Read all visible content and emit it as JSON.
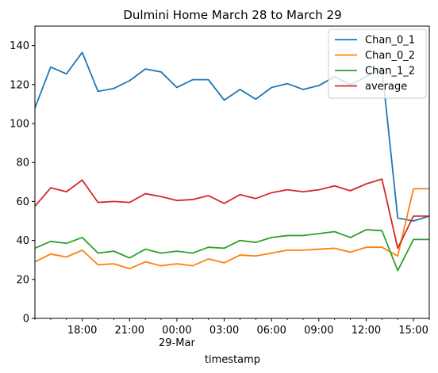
{
  "chart_data": {
    "type": "line",
    "title": "Dulmini Home March 28 to March 29",
    "xlabel": "timestamp",
    "ylabel": "",
    "x": [
      "03-28 15:00",
      "03-28 16:00",
      "03-28 17:00",
      "03-28 18:00",
      "03-28 19:00",
      "03-28 20:00",
      "03-28 21:00",
      "03-28 22:00",
      "03-28 23:00",
      "03-29 00:00",
      "03-29 01:00",
      "03-29 02:00",
      "03-29 03:00",
      "03-29 04:00",
      "03-29 05:00",
      "03-29 06:00",
      "03-29 07:00",
      "03-29 08:00",
      "03-29 09:00",
      "03-29 10:00",
      "03-29 11:00",
      "03-29 12:00",
      "03-29 13:00",
      "03-29 14:00",
      "03-29 15:00",
      "03-29 16:00"
    ],
    "x_ticks": [
      {
        "hour": 18,
        "label": "18:00",
        "sublabel": ""
      },
      {
        "hour": 21,
        "label": "21:00",
        "sublabel": ""
      },
      {
        "hour": 24,
        "label": "00:00",
        "sublabel": "29-Mar"
      },
      {
        "hour": 27,
        "label": "03:00",
        "sublabel": ""
      },
      {
        "hour": 30,
        "label": "06:00",
        "sublabel": ""
      },
      {
        "hour": 33,
        "label": "09:00",
        "sublabel": ""
      },
      {
        "hour": 36,
        "label": "12:00",
        "sublabel": ""
      },
      {
        "hour": 39,
        "label": "15:00",
        "sublabel": ""
      }
    ],
    "xlim_hours": [
      15,
      40
    ],
    "ylim": [
      0,
      150
    ],
    "y_ticks": [
      0,
      20,
      40,
      60,
      80,
      100,
      120,
      140
    ],
    "grid": false,
    "legend_position": "top-right",
    "series": [
      {
        "name": "Chan_0_1",
        "color": "#1f77b4",
        "values": [
          108,
          129,
          125.5,
          136.5,
          116.5,
          118,
          122,
          128,
          126.5,
          118.5,
          122.5,
          122.5,
          112,
          117.5,
          112.5,
          118.5,
          120.5,
          117.5,
          119.5,
          124,
          120,
          124,
          128.5,
          51.5,
          50,
          52.5
        ]
      },
      {
        "name": "Chan_0_2",
        "color": "#ff7f0e",
        "values": [
          29,
          33,
          31.5,
          35,
          27.5,
          28,
          25.5,
          29,
          27,
          28,
          27,
          30.5,
          28.5,
          32.5,
          32,
          33.5,
          35,
          35,
          35.5,
          36,
          34,
          36.5,
          36.5,
          32,
          66.5,
          66.5
        ]
      },
      {
        "name": "Chan_1_2",
        "color": "#2ca02c",
        "values": [
          36,
          39.5,
          38.5,
          41.5,
          33.5,
          34.5,
          31,
          35.5,
          33.5,
          34.5,
          33.5,
          36.5,
          36,
          40,
          39,
          41.5,
          42.5,
          42.5,
          43.5,
          44.5,
          41.5,
          45.5,
          45,
          24.5,
          40.5,
          40.5
        ]
      },
      {
        "name": "average",
        "color": "#d62728",
        "values": [
          57.5,
          67,
          65,
          71,
          59.5,
          60,
          59.5,
          64,
          62.5,
          60.5,
          61,
          63,
          59,
          63.5,
          61.5,
          64.5,
          66,
          65,
          66,
          68,
          65.5,
          69,
          71.5,
          36,
          52.5,
          52.5
        ]
      }
    ]
  }
}
